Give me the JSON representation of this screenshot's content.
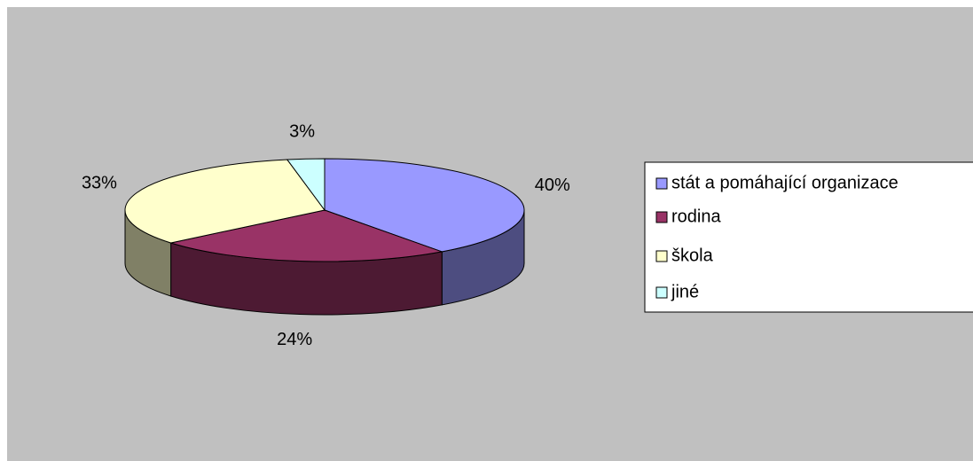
{
  "chart_data": {
    "type": "pie",
    "categories": [
      "stát a pomáhající organizace",
      "rodina",
      "škola",
      "jiné"
    ],
    "values": [
      40,
      24,
      33,
      3
    ],
    "value_labels": [
      "40%",
      "24%",
      "33%",
      "3%"
    ],
    "colors": [
      "#9999ff",
      "#993366",
      "#ffffcc",
      "#ccffff"
    ],
    "legend": "right"
  }
}
